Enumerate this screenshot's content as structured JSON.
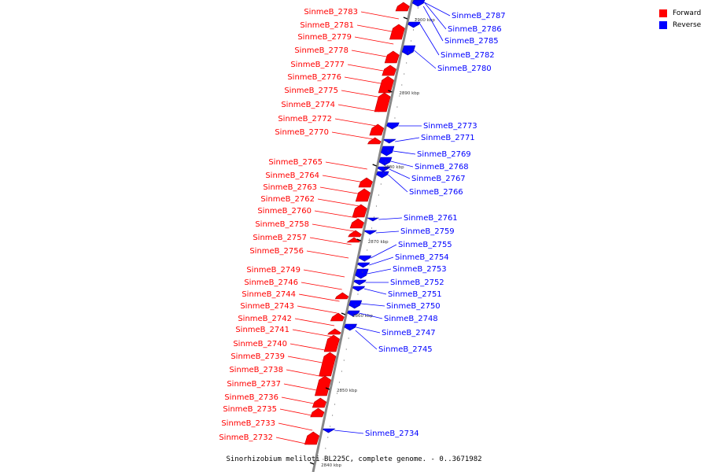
{
  "caption": "Sinorhizobium meliloti BL225C, complete genome. - 0..3671982",
  "legend": {
    "forward_label": "Forward",
    "reverse_label": "Reverse",
    "forward_color": "#ff0000",
    "reverse_color": "#0000ff"
  },
  "ticks": [
    "2900 kbp",
    "2890 kbp",
    "2880 kbp",
    "2870 kbp",
    "2860 kbp",
    "2850 kbp",
    "2840 kbp"
  ],
  "forward_genes": [
    "SinmeB_2783",
    "SinmeB_2781",
    "SinmeB_2779",
    "SinmeB_2778",
    "SinmeB_2777",
    "SinmeB_2776",
    "SinmeB_2775",
    "SinmeB_2774",
    "SinmeB_2772",
    "SinmeB_2770",
    "SinmeB_2765",
    "SinmeB_2764",
    "SinmeB_2763",
    "SinmeB_2762",
    "SinmeB_2760",
    "SinmeB_2758",
    "SinmeB_2757",
    "SinmeB_2756",
    "SinmeB_2749",
    "SinmeB_2746",
    "SinmeB_2744",
    "SinmeB_2743",
    "SinmeB_2742",
    "SinmeB_2741",
    "SinmeB_2740",
    "SinmeB_2739",
    "SinmeB_2738",
    "SinmeB_2737",
    "SinmeB_2736",
    "SinmeB_2735",
    "SinmeB_2733",
    "SinmeB_2732"
  ],
  "reverse_genes": [
    "SinmeB_2787",
    "SinmeB_2786",
    "SinmeB_2785",
    "SinmeB_2782",
    "SinmeB_2780",
    "SinmeB_2773",
    "SinmeB_2771",
    "SinmeB_2769",
    "SinmeB_2768",
    "SinmeB_2767",
    "SinmeB_2766",
    "SinmeB_2761",
    "SinmeB_2759",
    "SinmeB_2755",
    "SinmeB_2754",
    "SinmeB_2753",
    "SinmeB_2752",
    "SinmeB_2751",
    "SinmeB_2750",
    "SinmeB_2748",
    "SinmeB_2747",
    "SinmeB_2745",
    "SinmeB_2734"
  ]
}
